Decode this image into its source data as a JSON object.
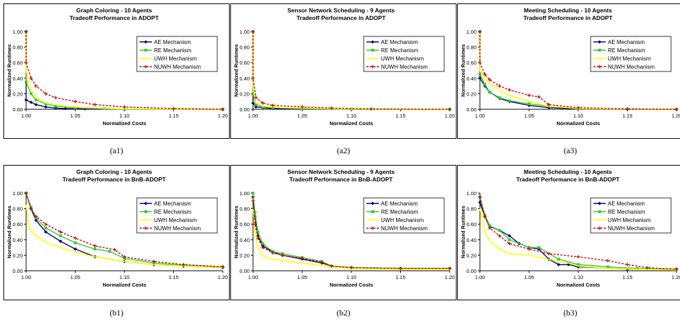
{
  "figure": {
    "captions": [
      "(a1)",
      "(a2)",
      "(a3)",
      "(b1)",
      "(b2)",
      "(b3)"
    ]
  },
  "chart_data": [
    {
      "type": "line",
      "title": "Graph Coloring - 10 Agents",
      "subtitle": "Tradeoff Performance in ADOPT",
      "xlabel": "Normalized Costs",
      "ylabel": "Normalized Runtimes",
      "xlim": [
        1.0,
        1.2
      ],
      "ylim": [
        0.0,
        1.0
      ],
      "xticks": [
        "1.00",
        "1.05",
        "1.10",
        "1.15",
        "1.20"
      ],
      "yticks": [
        "0.00",
        "0.20",
        "0.40",
        "0.60",
        "0.80",
        "1.00"
      ],
      "legend_position": "upper-right",
      "series": [
        {
          "name": "AE Mechanism",
          "color": "#000080",
          "marker": "diamond",
          "x": [
            1.0,
            1.0,
            1.005,
            1.01,
            1.02,
            1.03,
            1.04,
            1.06,
            1.1,
            1.2
          ],
          "y": [
            1.0,
            0.12,
            0.09,
            0.06,
            0.03,
            0.015,
            0.01,
            0.005,
            0.0,
            0.0
          ]
        },
        {
          "name": "RE Mechanism",
          "color": "#33cc33",
          "marker": "square",
          "x": [
            1.0,
            1.0,
            1.005,
            1.01,
            1.02,
            1.03,
            1.05,
            1.08,
            1.1,
            1.2
          ],
          "y": [
            1.0,
            0.35,
            0.2,
            0.12,
            0.07,
            0.04,
            0.02,
            0.01,
            0.0,
            0.0
          ]
        },
        {
          "name": "UWH Mechanism",
          "color": "#ffff00",
          "marker": "none",
          "x": [
            1.0,
            1.0,
            1.005,
            1.01,
            1.02,
            1.04,
            1.06,
            1.1,
            1.2
          ],
          "y": [
            1.0,
            0.5,
            0.25,
            0.15,
            0.08,
            0.04,
            0.02,
            0.005,
            0.0
          ]
        },
        {
          "name": "NUWH Mechanism",
          "color": "#cc0000",
          "marker": "plus",
          "dashed": true,
          "x": [
            1.0,
            1.0,
            1.005,
            1.01,
            1.02,
            1.03,
            1.05,
            1.07,
            1.1,
            1.15,
            1.2
          ],
          "y": [
            1.0,
            0.6,
            0.4,
            0.3,
            0.2,
            0.15,
            0.1,
            0.06,
            0.03,
            0.01,
            0.0
          ]
        }
      ]
    },
    {
      "type": "line",
      "title": "Sensor Network Scheduling - 9 Agents",
      "subtitle": "Tradeoff Performance in ADOPT",
      "xlabel": "Normalized Costs",
      "ylabel": "Normalized Runtimes",
      "xlim": [
        1.0,
        1.2
      ],
      "ylim": [
        0.0,
        1.0
      ],
      "xticks": [
        "1.00",
        "1.05",
        "1.10",
        "1.15",
        "1.20"
      ],
      "yticks": [
        "0.00",
        "0.20",
        "0.40",
        "0.60",
        "0.80",
        "1.00"
      ],
      "legend_position": "upper-right",
      "series": [
        {
          "name": "AE Mechanism",
          "color": "#000080",
          "marker": "diamond",
          "x": [
            1.0,
            1.0,
            1.003,
            1.01,
            1.02,
            1.05,
            1.1,
            1.2
          ],
          "y": [
            1.0,
            0.08,
            0.03,
            0.02,
            0.01,
            0.005,
            0.0,
            0.0
          ]
        },
        {
          "name": "RE Mechanism",
          "color": "#33cc33",
          "marker": "square",
          "x": [
            1.0,
            1.0,
            1.003,
            1.01,
            1.02,
            1.05,
            1.1,
            1.2
          ],
          "y": [
            1.0,
            0.2,
            0.06,
            0.03,
            0.02,
            0.01,
            0.0,
            0.0
          ]
        },
        {
          "name": "UWH Mechanism",
          "color": "#ffff00",
          "marker": "none",
          "x": [
            1.0,
            1.0,
            1.003,
            1.01,
            1.03,
            1.1,
            1.2
          ],
          "y": [
            1.0,
            0.3,
            0.08,
            0.04,
            0.02,
            0.005,
            0.0
          ]
        },
        {
          "name": "NUWH Mechanism",
          "color": "#cc0000",
          "marker": "plus",
          "dashed": true,
          "x": [
            1.0,
            1.0,
            1.003,
            1.01,
            1.02,
            1.05,
            1.08,
            1.12,
            1.2
          ],
          "y": [
            1.0,
            0.4,
            0.15,
            0.08,
            0.05,
            0.03,
            0.015,
            0.005,
            0.0
          ]
        }
      ]
    },
    {
      "type": "line",
      "title": "Meeting Scheduling - 10 Agents",
      "subtitle": "Tradeoff Performance in ADOPT",
      "xlabel": "Normalized Costs",
      "ylabel": "Normalized Runtimes",
      "xlim": [
        1.0,
        1.2
      ],
      "ylim": [
        0.0,
        1.0
      ],
      "xticks": [
        "1.00",
        "1.05",
        "1.10",
        "1.15",
        "1.20"
      ],
      "yticks": [
        "0.00",
        "0.20",
        "0.40",
        "0.60",
        "0.80",
        "1.00"
      ],
      "legend_position": "upper-right",
      "series": [
        {
          "name": "AE Mechanism",
          "color": "#000080",
          "marker": "diamond",
          "x": [
            1.0,
            1.0,
            1.005,
            1.01,
            1.02,
            1.03,
            1.05,
            1.07,
            1.1,
            1.15,
            1.2
          ],
          "y": [
            1.0,
            0.4,
            0.3,
            0.22,
            0.14,
            0.1,
            0.05,
            0.02,
            0.005,
            0.0,
            0.0
          ]
        },
        {
          "name": "RE Mechanism",
          "color": "#33cc33",
          "marker": "square",
          "x": [
            1.0,
            1.0,
            1.005,
            1.01,
            1.02,
            1.03,
            1.05,
            1.07,
            1.1,
            1.2
          ],
          "y": [
            1.0,
            0.45,
            0.32,
            0.22,
            0.15,
            0.11,
            0.07,
            0.04,
            0.01,
            0.0
          ]
        },
        {
          "name": "UWH Mechanism",
          "color": "#ffff00",
          "marker": "none",
          "x": [
            1.0,
            1.0,
            1.005,
            1.01,
            1.02,
            1.03,
            1.05,
            1.07,
            1.1,
            1.2
          ],
          "y": [
            1.0,
            0.5,
            0.4,
            0.33,
            0.25,
            0.18,
            0.1,
            0.04,
            0.01,
            0.0
          ]
        },
        {
          "name": "NUWH Mechanism",
          "color": "#cc0000",
          "marker": "plus",
          "dashed": true,
          "x": [
            1.0,
            1.0,
            1.005,
            1.01,
            1.02,
            1.03,
            1.05,
            1.06,
            1.07,
            1.1,
            1.15,
            1.2
          ],
          "y": [
            1.0,
            0.6,
            0.45,
            0.38,
            0.3,
            0.25,
            0.18,
            0.16,
            0.06,
            0.02,
            0.005,
            0.0
          ]
        }
      ]
    },
    {
      "type": "line",
      "title": "Graph Coloring - 10 Agents",
      "subtitle": "Tradeoff Performance in BnB-ADOPT",
      "xlabel": "Normalized Costs",
      "ylabel": "Normalized Runtimes",
      "xlim": [
        1.0,
        1.2
      ],
      "ylim": [
        0.0,
        1.0
      ],
      "xticks": [
        "1.00",
        "1.05",
        "1.10",
        "1.15",
        "1.20"
      ],
      "yticks": [
        "0.00",
        "0.20",
        "0.40",
        "0.60",
        "0.80",
        "1.00"
      ],
      "legend_position": "upper-right",
      "series": [
        {
          "name": "AE Mechanism",
          "color": "#000080",
          "marker": "diamond",
          "x": [
            1.0,
            1.005,
            1.01,
            1.02,
            1.035,
            1.05,
            1.07,
            1.1,
            1.13,
            1.16,
            1.2
          ],
          "y": [
            1.0,
            0.8,
            0.65,
            0.5,
            0.38,
            0.28,
            0.18,
            0.12,
            0.08,
            0.06,
            0.04
          ]
        },
        {
          "name": "RE Mechanism",
          "color": "#33cc33",
          "marker": "square",
          "x": [
            1.0,
            1.005,
            1.01,
            1.02,
            1.035,
            1.05,
            1.07,
            1.085,
            1.1,
            1.13,
            1.16,
            1.2
          ],
          "y": [
            1.0,
            0.82,
            0.68,
            0.55,
            0.45,
            0.36,
            0.28,
            0.25,
            0.16,
            0.1,
            0.07,
            0.05
          ]
        },
        {
          "name": "UWH Mechanism",
          "color": "#ffff00",
          "marker": "none",
          "x": [
            1.0,
            1.003,
            1.01,
            1.02,
            1.035,
            1.05,
            1.07,
            1.1,
            1.13,
            1.16,
            1.2
          ],
          "y": [
            0.85,
            0.55,
            0.45,
            0.37,
            0.3,
            0.24,
            0.18,
            0.12,
            0.08,
            0.06,
            0.04
          ]
        },
        {
          "name": "NUWH Mechanism",
          "color": "#cc0000",
          "marker": "plus",
          "dashed": true,
          "x": [
            1.0,
            1.005,
            1.01,
            1.02,
            1.035,
            1.05,
            1.07,
            1.09,
            1.1,
            1.13,
            1.16,
            1.2
          ],
          "y": [
            1.0,
            0.8,
            0.7,
            0.6,
            0.5,
            0.42,
            0.32,
            0.27,
            0.18,
            0.12,
            0.08,
            0.05
          ]
        }
      ]
    },
    {
      "type": "line",
      "title": "Sensor Network Scheduling - 9 Agents",
      "subtitle": "Tradeoff Performance in BnB-ADOPT",
      "xlabel": "Normalized Costs",
      "ylabel": "Normalized Runtimes",
      "xlim": [
        1.0,
        1.2
      ],
      "ylim": [
        0.0,
        1.0
      ],
      "xticks": [
        "1.00",
        "1.05",
        "1.10",
        "1.15",
        "1.20"
      ],
      "yticks": [
        "0.00",
        "0.20",
        "0.40",
        "0.60",
        "0.80",
        "1.00"
      ],
      "legend_position": "upper-right",
      "series": [
        {
          "name": "AE Mechanism",
          "color": "#000080",
          "marker": "diamond",
          "x": [
            1.0,
            1.002,
            1.005,
            1.01,
            1.02,
            1.03,
            1.05,
            1.07,
            1.08,
            1.1,
            1.15,
            1.2
          ],
          "y": [
            0.95,
            0.7,
            0.45,
            0.32,
            0.24,
            0.2,
            0.15,
            0.1,
            0.06,
            0.04,
            0.03,
            0.03
          ]
        },
        {
          "name": "RE Mechanism",
          "color": "#33cc33",
          "marker": "square",
          "x": [
            1.0,
            1.002,
            1.005,
            1.01,
            1.02,
            1.03,
            1.05,
            1.07,
            1.08,
            1.1,
            1.15,
            1.2
          ],
          "y": [
            1.0,
            0.75,
            0.5,
            0.35,
            0.25,
            0.22,
            0.17,
            0.12,
            0.06,
            0.04,
            0.03,
            0.03
          ]
        },
        {
          "name": "UWH Mechanism",
          "color": "#ffff00",
          "marker": "none",
          "x": [
            1.0,
            1.002,
            1.005,
            1.01,
            1.015,
            1.02,
            1.05,
            1.08,
            1.1,
            1.15,
            1.2
          ],
          "y": [
            0.8,
            0.5,
            0.3,
            0.2,
            0.16,
            0.15,
            0.1,
            0.05,
            0.03,
            0.02,
            0.02
          ]
        },
        {
          "name": "NUWH Mechanism",
          "color": "#cc0000",
          "marker": "plus",
          "dashed": true,
          "x": [
            1.0,
            1.002,
            1.005,
            1.01,
            1.02,
            1.03,
            1.05,
            1.07,
            1.08,
            1.1,
            1.15,
            1.2
          ],
          "y": [
            0.9,
            0.6,
            0.42,
            0.3,
            0.23,
            0.2,
            0.16,
            0.11,
            0.06,
            0.04,
            0.03,
            0.03
          ]
        }
      ]
    },
    {
      "type": "line",
      "title": "Meeting Scheduling - 10 Agents",
      "subtitle": "Tradeoff Performance in BnB-ADOPT",
      "xlabel": "Normalized Costs",
      "ylabel": "Normalized Runtimes",
      "xlim": [
        1.0,
        1.2
      ],
      "ylim": [
        0.0,
        1.0
      ],
      "xticks": [
        "1.00",
        "1.05",
        "1.10",
        "1.15",
        "1.20"
      ],
      "yticks": [
        "0.00",
        "0.20",
        "0.40",
        "0.60",
        "0.80",
        "1.00"
      ],
      "legend_position": "upper-right",
      "series": [
        {
          "name": "AE Mechanism",
          "color": "#000080",
          "marker": "diamond",
          "x": [
            1.0,
            1.005,
            1.01,
            1.02,
            1.03,
            1.04,
            1.05,
            1.06,
            1.07,
            1.08,
            1.09,
            1.1,
            1.15,
            1.2
          ],
          "y": [
            0.88,
            0.7,
            0.57,
            0.52,
            0.45,
            0.35,
            0.3,
            0.28,
            0.15,
            0.08,
            0.08,
            0.05,
            0.02,
            0.02
          ]
        },
        {
          "name": "RE Mechanism",
          "color": "#33cc33",
          "marker": "square",
          "x": [
            1.0,
            1.005,
            1.01,
            1.02,
            1.03,
            1.05,
            1.06,
            1.08,
            1.1,
            1.13,
            1.16,
            1.2
          ],
          "y": [
            0.95,
            0.72,
            0.58,
            0.52,
            0.4,
            0.3,
            0.3,
            0.15,
            0.08,
            0.05,
            0.03,
            0.02
          ]
        },
        {
          "name": "UWH Mechanism",
          "color": "#ffff00",
          "marker": "none",
          "x": [
            1.0,
            1.005,
            1.01,
            1.02,
            1.03,
            1.05,
            1.07,
            1.09,
            1.1,
            1.13,
            1.16,
            1.2
          ],
          "y": [
            0.8,
            0.5,
            0.38,
            0.28,
            0.22,
            0.2,
            0.15,
            0.1,
            0.06,
            0.03,
            0.02,
            0.01
          ]
        },
        {
          "name": "NUWH Mechanism",
          "color": "#cc0000",
          "marker": "plus",
          "dashed": true,
          "x": [
            1.0,
            1.005,
            1.01,
            1.02,
            1.03,
            1.05,
            1.07,
            1.1,
            1.13,
            1.15,
            1.17,
            1.2
          ],
          "y": [
            0.95,
            0.7,
            0.55,
            0.45,
            0.35,
            0.28,
            0.22,
            0.18,
            0.13,
            0.08,
            0.04,
            0.02
          ]
        }
      ]
    }
  ]
}
